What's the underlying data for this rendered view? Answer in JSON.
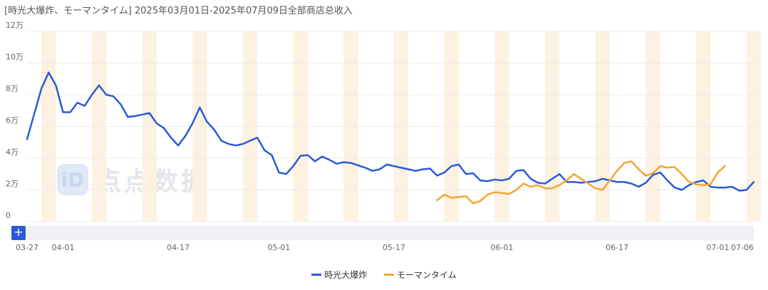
{
  "chart_data": {
    "type": "line",
    "title": "[時光大爆炸、モーマンタイム] 2025年03月01日-2025年07月09日全部商店总收入",
    "y_ticks": [
      "0",
      "2万",
      "4万",
      "6万",
      "8万",
      "10万",
      "12万"
    ],
    "ylim": [
      0,
      120000
    ],
    "x_range": [
      "2025-03-27",
      "2025-07-06"
    ],
    "x_ticks": [
      {
        "date": "2025-03-27",
        "label": "03-27"
      },
      {
        "date": "2025-04-01",
        "label": "04-01"
      },
      {
        "date": "2025-04-17",
        "label": "04-17"
      },
      {
        "date": "2025-05-01",
        "label": "05-01"
      },
      {
        "date": "2025-05-17",
        "label": "05-17"
      },
      {
        "date": "2025-06-01",
        "label": "06-01"
      },
      {
        "date": "2025-06-17",
        "label": "06-17"
      },
      {
        "date": "2025-07-01",
        "label": "07-01"
      },
      {
        "date": "2025-07-06",
        "label": "07-06"
      }
    ],
    "weekend_bands": [
      "2025-03-29",
      "2025-04-05",
      "2025-04-12",
      "2025-04-19",
      "2025-04-26",
      "2025-05-03",
      "2025-05-10",
      "2025-05-17",
      "2025-05-24",
      "2025-05-31",
      "2025-06-07",
      "2025-06-14",
      "2025-06-21",
      "2025-06-28",
      "2025-07-05"
    ],
    "grid": true,
    "legend_position": "bottom-center",
    "series": [
      {
        "name": "時光大爆炸",
        "color": "#2a5bd7",
        "start_date": "2025-03-27",
        "values": [
          52000,
          68000,
          84000,
          94000,
          86000,
          69000,
          69000,
          75000,
          73000,
          80000,
          86000,
          80000,
          79000,
          74000,
          66000,
          66500,
          67500,
          68500,
          62000,
          59000,
          53000,
          48000,
          54000,
          62000,
          72000,
          63000,
          58000,
          51000,
          49000,
          48000,
          49000,
          51000,
          53000,
          45000,
          42000,
          31000,
          30000,
          35000,
          41500,
          42000,
          38000,
          41000,
          39000,
          36500,
          37500,
          37000,
          35500,
          34000,
          32000,
          33000,
          36000,
          35000,
          34000,
          33000,
          32000,
          33000,
          33500,
          29000,
          31000,
          35000,
          36000,
          30000,
          30500,
          26000,
          25500,
          26500,
          26000,
          27000,
          32000,
          32500,
          27000,
          24500,
          24000,
          27000,
          30000,
          25000,
          25000,
          24500,
          25000,
          25500,
          27000,
          26000,
          25000,
          25000,
          24000,
          22000,
          24500,
          29500,
          31000,
          26000,
          21500,
          20000,
          23000,
          25000,
          26000,
          22000,
          21500,
          21500,
          22000,
          19500,
          20000,
          25000
        ],
        "values_ascii": []
      },
      {
        "name": "モーマンタイム",
        "color": "#f5a431",
        "start_date": "2025-05-23",
        "values": [
          13500,
          17000,
          15000,
          15500,
          16000,
          11500,
          13000,
          17000,
          18500,
          18000,
          17500,
          20000,
          24000,
          22000,
          23000,
          21000,
          21000,
          23000,
          26000,
          30000,
          27000,
          24000,
          21000,
          20000,
          26000,
          32000,
          37000,
          38000,
          33000,
          29000,
          30500,
          35000,
          34000,
          34500,
          30000,
          25000,
          23500,
          23000,
          23500,
          31000,
          35000
        ]
      }
    ]
  },
  "legend": {
    "s0": "時光大爆炸",
    "s1": "モーマンタイム"
  },
  "zoom": {
    "plus_label": "+"
  },
  "watermark": {
    "text": "点点数据",
    "logo": "iD"
  }
}
